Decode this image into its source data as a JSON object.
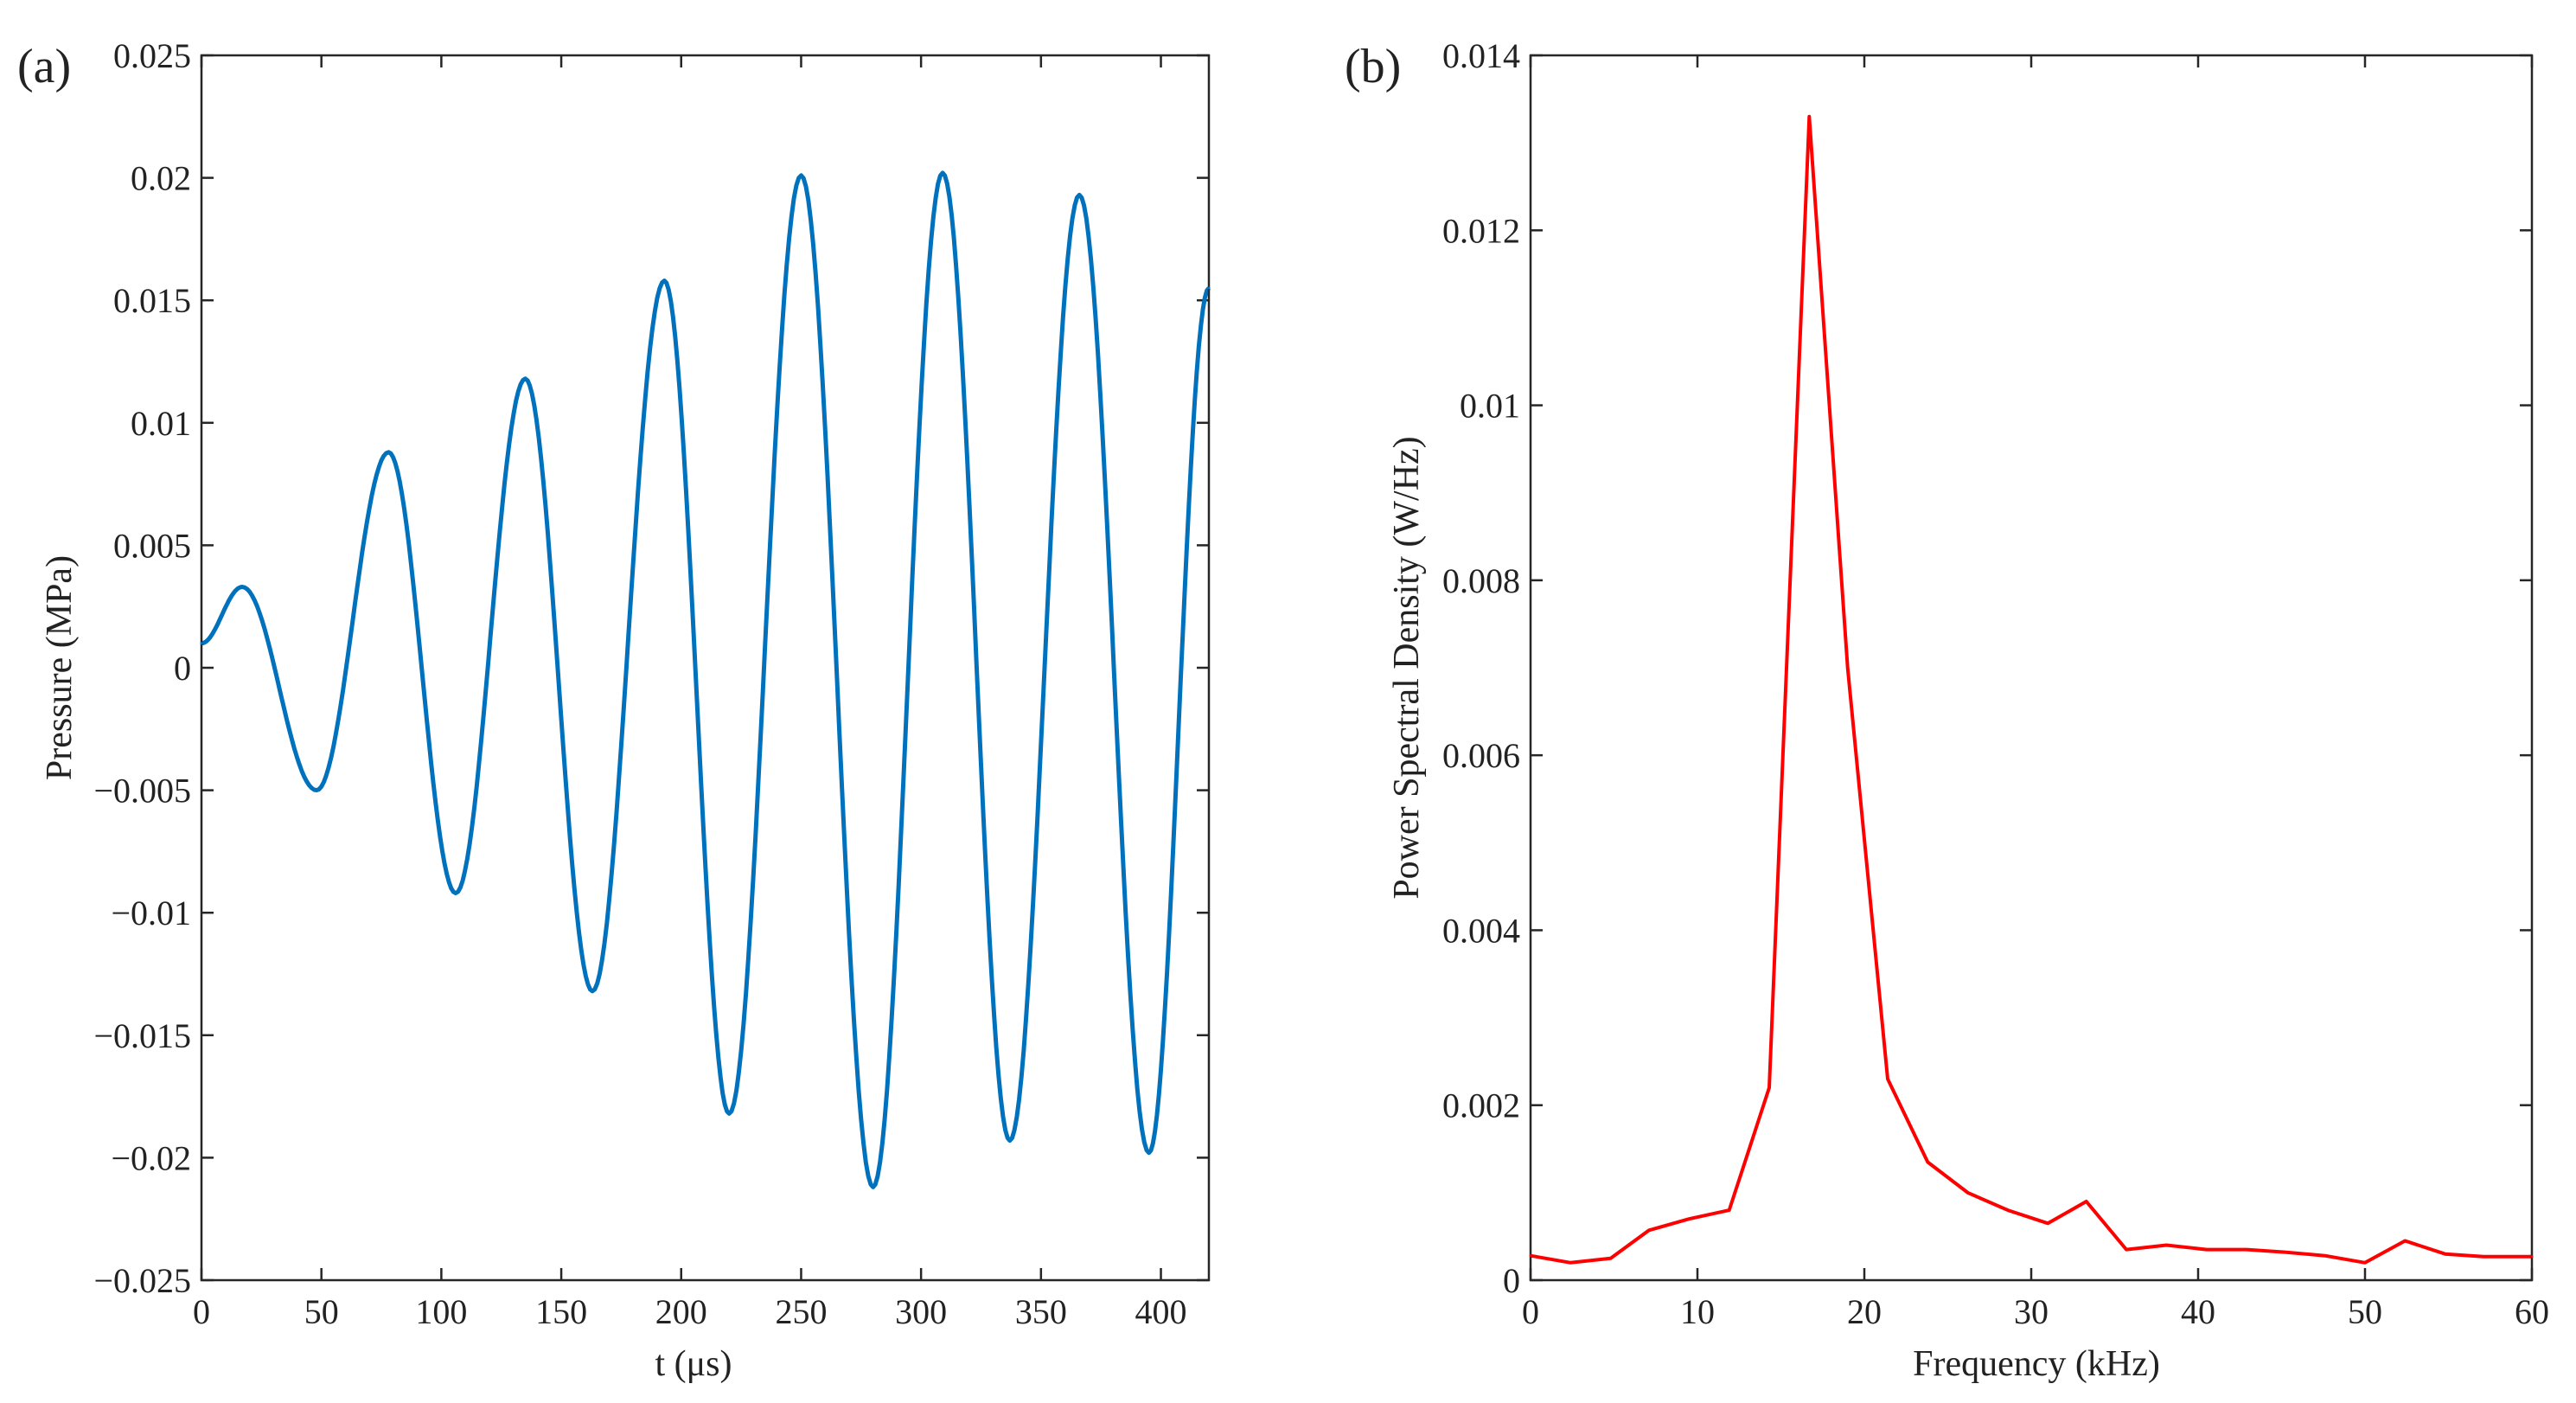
{
  "colors": {
    "panel_a_line": "#0072BD",
    "panel_b_line": "#FF0000",
    "axes": "#262626"
  },
  "chart_data": [
    {
      "type": "line",
      "panel_label": "(a)",
      "title": "",
      "xlabel": "t (μs)",
      "ylabel": "Pressure (MPa)",
      "xlim": [
        0,
        420
      ],
      "ylim": [
        -0.025,
        0.025
      ],
      "xticks": [
        0,
        50,
        100,
        150,
        200,
        250,
        300,
        350,
        400
      ],
      "xtick_labels": [
        "0",
        "50",
        "100",
        "150",
        "200",
        "250",
        "300",
        "350",
        "400"
      ],
      "yticks": [
        -0.025,
        -0.02,
        -0.015,
        -0.01,
        -0.005,
        0,
        0.005,
        0.01,
        0.015,
        0.02,
        0.025
      ],
      "ytick_labels": [
        "−0.025",
        "−0.02",
        "−0.015",
        "−0.01",
        "−0.005",
        "0",
        "0.005",
        "0.01",
        "0.015",
        "0.02",
        "0.025"
      ],
      "grid": false,
      "series": [
        {
          "name": "Pressure",
          "x": [
            0,
            17,
            48,
            78,
            106,
            135,
            163,
            193,
            220,
            250,
            280,
            309,
            337,
            366,
            395,
            420
          ],
          "y": [
            0.001,
            0.0033,
            -0.005,
            0.0088,
            -0.0092,
            0.0118,
            -0.0132,
            0.0158,
            -0.0182,
            0.0201,
            -0.0212,
            0.0202,
            -0.0193,
            0.0193,
            -0.0198,
            0.0155
          ]
        }
      ]
    },
    {
      "type": "line",
      "panel_label": "(b)",
      "title": "",
      "xlabel": "Frequency (kHz)",
      "ylabel": "Power Spectral Density (W/Hz)",
      "xlim": [
        0,
        60
      ],
      "ylim": [
        0,
        0.014
      ],
      "xticks": [
        0,
        10,
        20,
        30,
        40,
        50,
        60
      ],
      "xtick_labels": [
        "0",
        "10",
        "20",
        "30",
        "40",
        "50",
        "60"
      ],
      "yticks": [
        0,
        0.002,
        0.004,
        0.006,
        0.008,
        0.01,
        0.012,
        0.014
      ],
      "ytick_labels": [
        "0",
        "0.002",
        "0.004",
        "0.006",
        "0.008",
        "0.01",
        "0.012",
        "0.014"
      ],
      "grid": false,
      "series": [
        {
          "name": "PSD",
          "x": [
            0,
            2.4,
            4.8,
            7.1,
            9.5,
            11.9,
            14.3,
            16.7,
            19.0,
            21.4,
            23.8,
            26.2,
            28.6,
            31.0,
            33.3,
            35.7,
            38.1,
            40.5,
            42.9,
            45.2,
            47.6,
            50.0,
            52.4,
            54.8,
            57.1,
            60.0
          ],
          "y": [
            0.00028,
            0.0002,
            0.00025,
            0.00057,
            0.0007,
            0.0008,
            0.0022,
            0.0133,
            0.007,
            0.0023,
            0.00135,
            0.001,
            0.0008,
            0.00065,
            0.0009,
            0.00035,
            0.0004,
            0.00035,
            0.00035,
            0.00032,
            0.00028,
            0.0002,
            0.00045,
            0.0003,
            0.00027,
            0.00027
          ]
        }
      ]
    }
  ]
}
